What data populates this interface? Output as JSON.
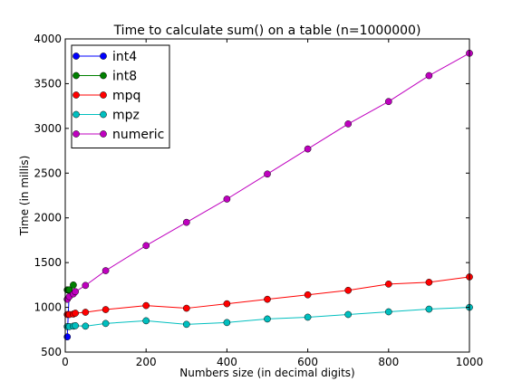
{
  "chart_data": {
    "type": "line",
    "title": "Time to calculate sum() on a table (n=1000000)",
    "xlabel": "Numbers size (in decimal digits)",
    "ylabel": "Time (in millis)",
    "xlim": [
      0,
      1000
    ],
    "ylim": [
      500,
      4000
    ],
    "x_ticks": [
      0,
      200,
      400,
      600,
      800,
      1000
    ],
    "y_ticks": [
      500,
      1000,
      1500,
      2000,
      2500,
      3000,
      3500,
      4000
    ],
    "grid": false,
    "legend_position": "top-left",
    "series": [
      {
        "name": "int4",
        "color": "#0000ff",
        "x": [
          5,
          10
        ],
        "y": [
          670,
          1190
        ]
      },
      {
        "name": "int8",
        "color": "#008000",
        "x": [
          5,
          10,
          20
        ],
        "y": [
          1195,
          1195,
          1250
        ]
      },
      {
        "name": "mpq",
        "color": "#ff0000",
        "x": [
          5,
          10,
          20,
          25,
          50,
          100,
          200,
          300,
          400,
          500,
          600,
          700,
          800,
          900,
          1000
        ],
        "y": [
          920,
          920,
          925,
          935,
          945,
          975,
          1020,
          990,
          1040,
          1090,
          1140,
          1190,
          1260,
          1280,
          1340
        ]
      },
      {
        "name": "mpz",
        "color": "#00bfbf",
        "x": [
          5,
          10,
          20,
          25,
          50,
          100,
          200,
          300,
          400,
          500,
          600,
          700,
          800,
          900,
          1000
        ],
        "y": [
          785,
          785,
          790,
          795,
          790,
          820,
          850,
          810,
          830,
          870,
          890,
          920,
          950,
          980,
          1000
        ]
      },
      {
        "name": "numeric",
        "color": "#bf00bf",
        "x": [
          5,
          10,
          20,
          25,
          50,
          100,
          200,
          300,
          400,
          500,
          600,
          700,
          800,
          900,
          1000
        ],
        "y": [
          1090,
          1120,
          1150,
          1175,
          1245,
          1410,
          1690,
          1950,
          2210,
          2490,
          2770,
          3050,
          3300,
          3590,
          3840
        ]
      }
    ]
  }
}
